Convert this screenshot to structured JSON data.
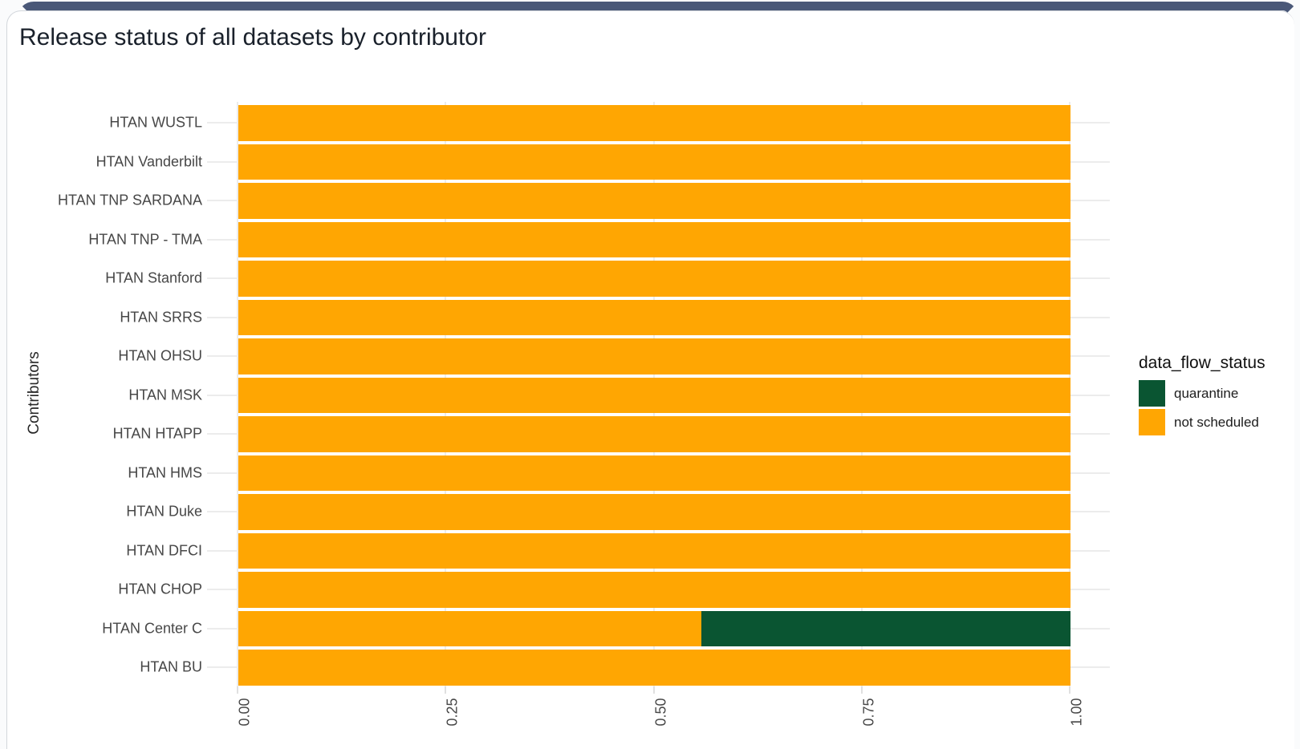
{
  "card": {
    "title": "Release status of all datasets by contributor"
  },
  "chart": {
    "y_axis_title": "Contributors",
    "x_ticks": [
      "0.00",
      "0.25",
      "0.50",
      "0.75",
      "1.00"
    ],
    "legend": {
      "title": "data_flow_status",
      "entries": [
        {
          "label": "quarantine",
          "color": "#0A5532"
        },
        {
          "label": "not scheduled",
          "color": "#FFA602"
        }
      ]
    }
  },
  "chart_data": {
    "type": "bar",
    "orientation": "horizontal",
    "stacked": true,
    "title": "Release status of all datasets by contributor",
    "xlabel": "",
    "ylabel": "Contributors",
    "xlim": [
      0,
      1
    ],
    "x_tick_values": [
      0,
      0.25,
      0.5,
      0.75,
      1.0
    ],
    "grid": true,
    "legend_position": "right",
    "categories": [
      "HTAN WUSTL",
      "HTAN Vanderbilt",
      "HTAN TNP SARDANA",
      "HTAN TNP - TMA",
      "HTAN Stanford",
      "HTAN SRRS",
      "HTAN OHSU",
      "HTAN MSK",
      "HTAN HTAPP",
      "HTAN HMS",
      "HTAN Duke",
      "HTAN DFCI",
      "HTAN CHOP",
      "HTAN Center C",
      "HTAN BU"
    ],
    "series": [
      {
        "name": "not scheduled",
        "color": "#FFA602",
        "values": [
          1,
          1,
          1,
          1,
          1,
          1,
          1,
          1,
          1,
          1,
          1,
          1,
          1,
          0.556,
          1
        ]
      },
      {
        "name": "quarantine",
        "color": "#0A5532",
        "values": [
          0,
          0,
          0,
          0,
          0,
          0,
          0,
          0,
          0,
          0,
          0,
          0,
          0,
          0.444,
          0
        ]
      }
    ]
  }
}
